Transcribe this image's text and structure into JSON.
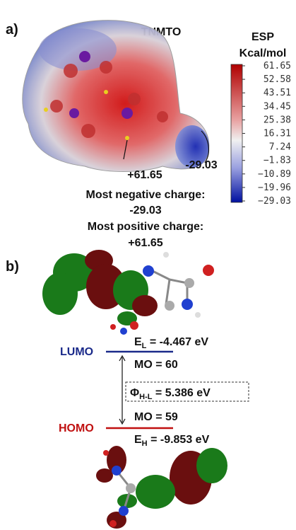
{
  "panel_a": {
    "label": "a)",
    "title": "TNMTO",
    "colorbar": {
      "title": "ESP",
      "unit": "Kcal/mol",
      "ticks": [
        "61.65",
        "52.58",
        "43.51",
        "34.45",
        "25.38",
        "16.31",
        "7.24",
        "−1.83",
        "−10.89",
        "−19.96",
        "−29.03"
      ]
    },
    "annotations": {
      "max_point": "+61.65",
      "min_point": "-29.03"
    },
    "summary": [
      "Most negative charge:",
      "-29.03",
      "Most positive charge:",
      "+61.65"
    ]
  },
  "panel_b": {
    "label": "b)",
    "lumo": {
      "name": "LUMO",
      "energy_symbol": "E",
      "energy_subscript": "L",
      "energy_value": " = -4.467 eV",
      "mo": "MO = 60"
    },
    "gap": {
      "symbol": "Φ",
      "subscript": "H-L",
      "value": " = 5.386 eV"
    },
    "homo": {
      "name": "HOMO",
      "energy_symbol": "E",
      "energy_subscript": "H",
      "energy_value": " = -9.853 eV",
      "mo": "MO = 59"
    }
  }
}
